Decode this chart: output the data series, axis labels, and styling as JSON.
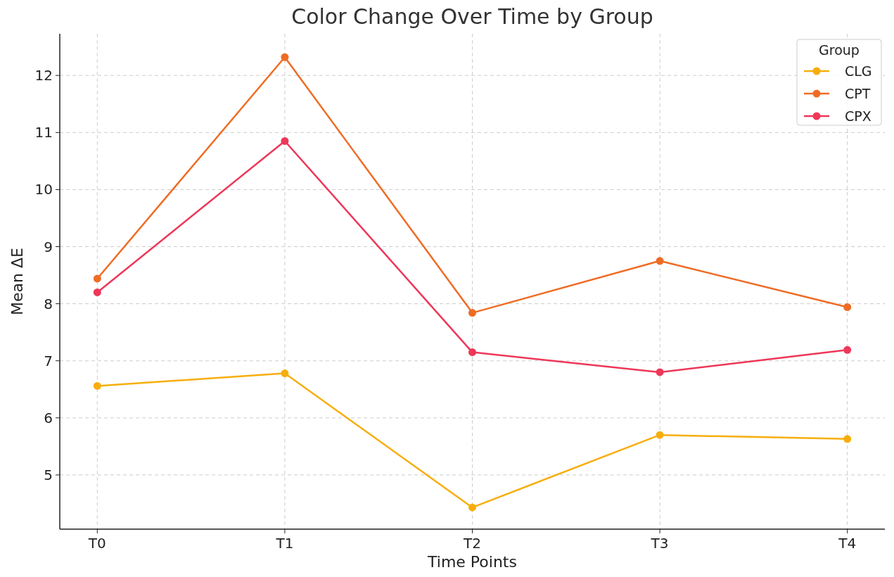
{
  "chart_data": {
    "type": "line",
    "title": "Color Change Over Time by Group",
    "xlabel": "Time Points",
    "ylabel": "Mean ΔE",
    "legend_title": "Group",
    "categories": [
      "T0",
      "T1",
      "T2",
      "T3",
      "T4"
    ],
    "series": [
      {
        "name": "CLG",
        "color": "#f7ae0c",
        "values": [
          6.56,
          6.78,
          4.43,
          5.7,
          5.63
        ]
      },
      {
        "name": "CPT",
        "color": "#ef6c24",
        "values": [
          8.44,
          12.32,
          7.84,
          8.75,
          7.94
        ]
      },
      {
        "name": "CPX",
        "color": "#ee3759",
        "values": [
          8.2,
          10.85,
          7.15,
          6.8,
          7.19
        ]
      }
    ],
    "ylim": [
      4.05,
      12.73
    ],
    "yticks": [
      5,
      6,
      7,
      8,
      9,
      10,
      11,
      12
    ],
    "grid": true,
    "legend": "top right",
    "marker": "circle",
    "line_style": "solid"
  }
}
